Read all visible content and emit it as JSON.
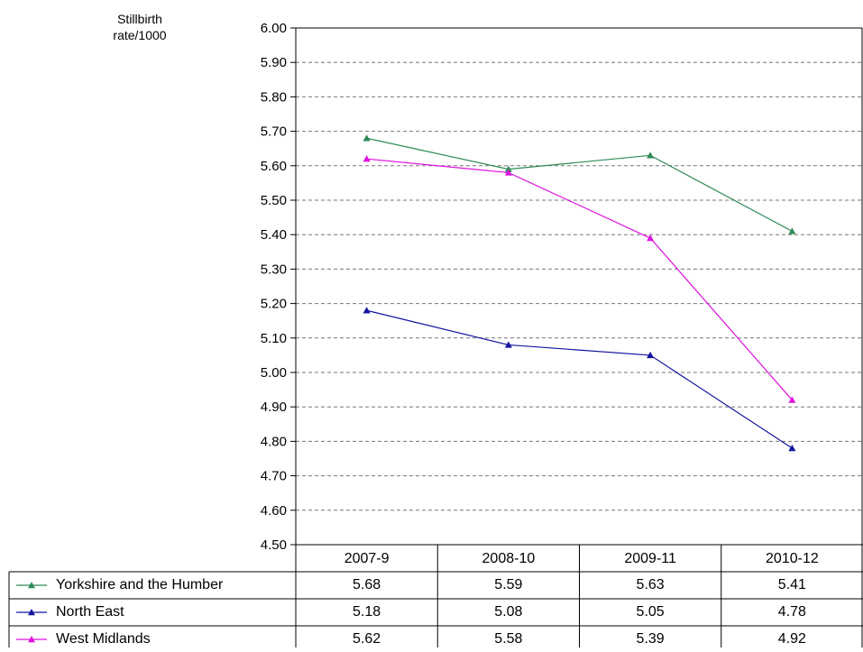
{
  "chart_data": {
    "type": "line",
    "ylabel_line1": "Stillbirth",
    "ylabel_line2": "rate/1000",
    "ylim": [
      4.5,
      6.0
    ],
    "ytick_step": 0.1,
    "ytick_labels": [
      "6.00",
      "5.90",
      "5.80",
      "5.70",
      "5.60",
      "5.50",
      "5.40",
      "5.30",
      "5.20",
      "5.10",
      "5.00",
      "4.90",
      "4.80",
      "4.70",
      "4.60",
      "4.50"
    ],
    "categories": [
      "2007-9",
      "2008-10",
      "2009-11",
      "2010-12"
    ],
    "grid": "horizontal-dashed",
    "legend": "data-table-below",
    "series": [
      {
        "name": "Yorkshire and the Humber",
        "color": "#2e8b57",
        "marker": "triangle",
        "values": [
          5.68,
          5.59,
          5.63,
          5.41
        ],
        "value_labels": [
          "5.68",
          "5.59",
          "5.63",
          "5.41"
        ]
      },
      {
        "name": "North East",
        "color": "#1414a0",
        "marker": "triangle",
        "values": [
          5.18,
          5.08,
          5.05,
          4.78
        ],
        "value_labels": [
          "5.18",
          "5.08",
          "5.05",
          "4.78"
        ]
      },
      {
        "name": "West Midlands",
        "color": "#e010e0",
        "marker": "triangle",
        "values": [
          5.62,
          5.58,
          5.39,
          4.92
        ],
        "value_labels": [
          "5.62",
          "5.58",
          "5.39",
          "4.92"
        ]
      }
    ]
  }
}
